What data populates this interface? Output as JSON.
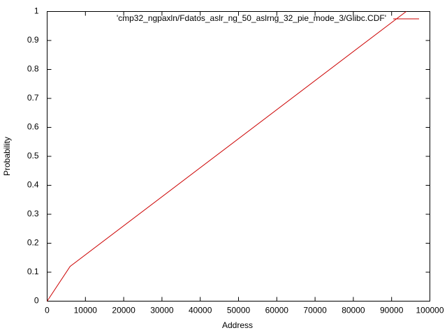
{
  "chart_data": {
    "type": "line",
    "xlabel": "Address",
    "ylabel": "Probability",
    "x": [
      0,
      6000,
      93800
    ],
    "series": [
      {
        "name": "'cmp32_ngpaxln/Fdatos_aslr_ng_50_aslrng_32_pie_mode_3/Glibc.CDF'",
        "color": "#cc0000",
        "values": [
          0,
          0.12,
          1
        ]
      }
    ],
    "xlim": [
      0,
      100000
    ],
    "ylim": [
      0,
      1
    ],
    "xticks": [
      0,
      10000,
      20000,
      30000,
      40000,
      50000,
      60000,
      70000,
      80000,
      90000,
      100000
    ],
    "yticks": [
      0,
      0.1,
      0.2,
      0.3,
      0.4,
      0.5,
      0.6,
      0.7,
      0.8,
      0.9,
      1
    ],
    "grid": false,
    "legend": "top-right"
  }
}
